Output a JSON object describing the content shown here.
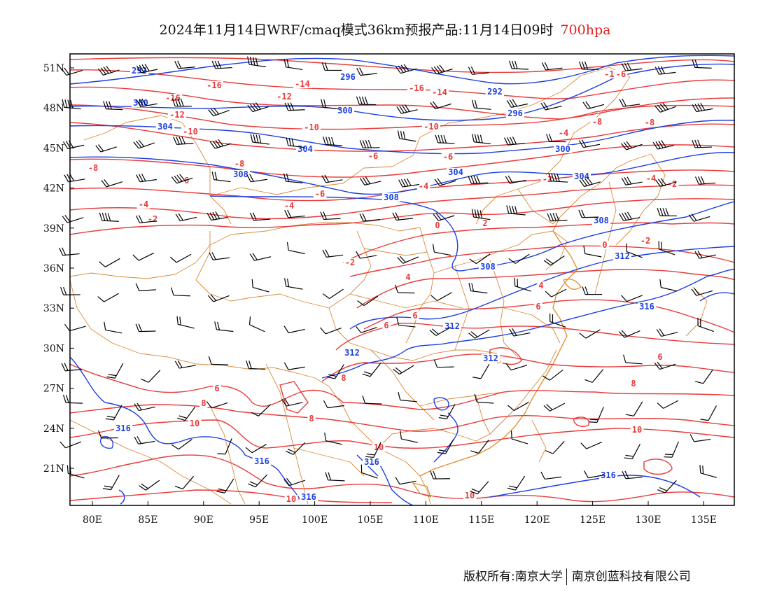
{
  "title": {
    "main": "2024年11月14日WRF/cmaq模式36km预报产品:11月14日09时",
    "level": "700hpa"
  },
  "footer": {
    "copyright": "版权所有:南京大学",
    "company": "南京创蓝科技有限公司"
  },
  "colors": {
    "temperature": "#e83a3a",
    "height": "#1e3fe0",
    "border": "#d98a3a",
    "wind": "#000000",
    "title_level": "#e02020"
  },
  "axes": {
    "lat_labels": [
      "51N",
      "48N",
      "45N",
      "42N",
      "39N",
      "36N",
      "33N",
      "30N",
      "27N",
      "24N",
      "21N"
    ],
    "lon_labels": [
      "80E",
      "85E",
      "90E",
      "95E",
      "100E",
      "105E",
      "110E",
      "115E",
      "120E",
      "125E",
      "130E",
      "135E"
    ]
  },
  "temperature_labels": [
    "-16",
    "-16",
    "-14",
    "-14",
    "-12",
    "-12",
    "-16",
    "-14",
    "-10",
    "-10",
    "-10",
    "-8",
    "-8",
    "-8",
    "-8",
    "-6",
    "-6",
    "-6",
    "-6",
    "-6",
    "-4",
    "-4",
    "-4",
    "-4",
    "-4",
    "-2",
    "-2",
    "-2",
    "-2",
    "0",
    "0",
    "2",
    "-2",
    "4",
    "4",
    "6",
    "6",
    "6",
    "8",
    "6",
    "6",
    "8",
    "8",
    "8",
    "8",
    "10",
    "10",
    "10",
    "10",
    "10",
    "-8",
    "-4",
    "-4"
  ],
  "height_labels": [
    "292",
    "300",
    "304",
    "296",
    "300",
    "292",
    "296",
    "300",
    "304",
    "304",
    "308",
    "308",
    "304",
    "308",
    "312",
    "308",
    "312",
    "316",
    "312",
    "312",
    "316",
    "316",
    "316",
    "316",
    "316"
  ]
}
